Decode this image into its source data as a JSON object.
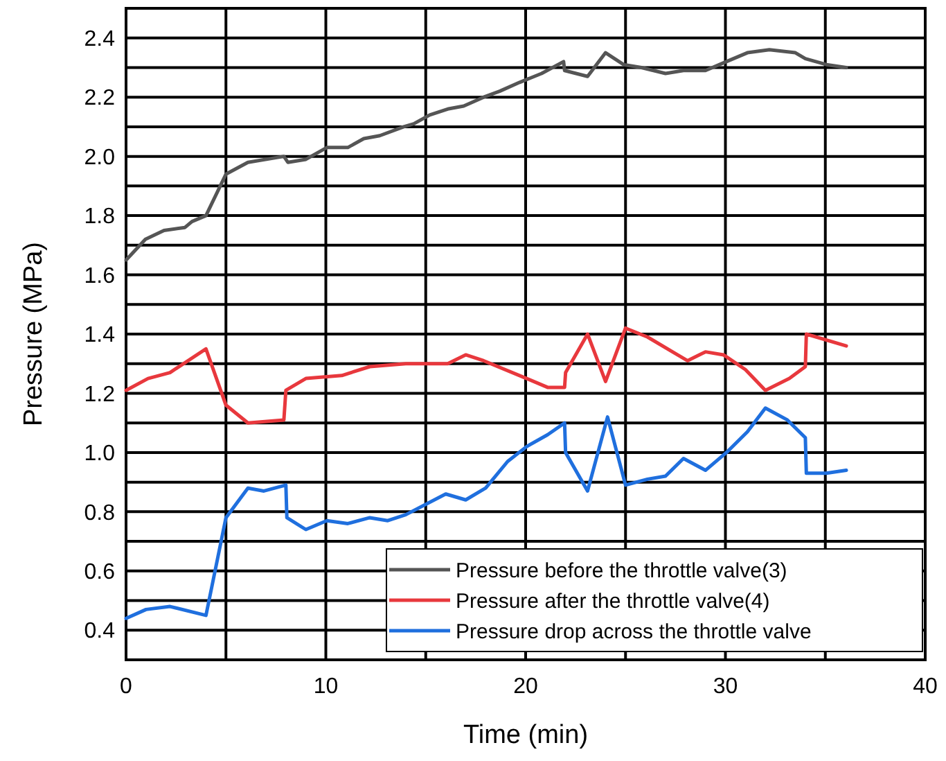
{
  "chart_data": {
    "type": "line",
    "xlabel": "Time (min)",
    "ylabel": "Pressure (MPa)",
    "xlim": [
      0,
      40
    ],
    "ylim": [
      0.3,
      2.5
    ],
    "xticks": [
      0,
      {
        "value": 5,
        "label": null
      },
      10,
      {
        "value": 15,
        "label": null
      },
      20,
      {
        "value": 25,
        "label": null
      },
      30,
      {
        "value": 35,
        "label": null
      },
      40
    ],
    "yticks": [
      {
        "value": 0.3,
        "label": null
      },
      0.4,
      {
        "value": 0.5,
        "label": null
      },
      0.6,
      {
        "value": 0.7,
        "label": null
      },
      0.8,
      {
        "value": 0.9,
        "label": null
      },
      {
        "value": 1,
        "label": "1.0"
      },
      {
        "value": 1.1,
        "label": null
      },
      1.2,
      {
        "value": 1.3,
        "label": null
      },
      1.4,
      {
        "value": 1.5,
        "label": null
      },
      1.6,
      {
        "value": 1.7,
        "label": null
      },
      1.8,
      {
        "value": 1.9,
        "label": null
      },
      {
        "value": 2,
        "label": "2.0"
      },
      {
        "value": 2.1,
        "label": null
      },
      2.2,
      {
        "value": 2.3,
        "label": null
      },
      2.4,
      {
        "value": 2.5,
        "label": null
      }
    ],
    "grid": true,
    "legend": "bottom right",
    "line_style": "solid",
    "series": [
      {
        "name": "Pressure before the throttle valve(3)",
        "color": "#555555",
        "x": [
          0,
          0.97,
          1.9,
          2.95,
          3.3,
          4.0,
          5.0,
          6.1,
          7.9,
          8.1,
          9.0,
          10.05,
          11.1,
          11.9,
          12.7,
          13.9,
          14.4,
          15.2,
          16.1,
          16.9,
          17.9,
          18.7,
          19.7,
          20.8,
          21.9,
          21.95,
          23.1,
          24.0,
          24.9,
          25.8,
          27.0,
          27.9,
          29.0,
          30.05,
          31.1,
          32.2,
          33.5,
          34.0,
          35.05,
          36.05
        ],
        "values": [
          1.65,
          1.72,
          1.75,
          1.76,
          1.78,
          1.8,
          1.94,
          1.98,
          2.0,
          1.98,
          1.99,
          2.03,
          2.03,
          2.06,
          2.07,
          2.1,
          2.11,
          2.14,
          2.16,
          2.17,
          2.2,
          2.22,
          2.25,
          2.28,
          2.32,
          2.29,
          2.27,
          2.35,
          2.31,
          2.3,
          2.28,
          2.29,
          2.29,
          2.32,
          2.35,
          2.36,
          2.35,
          2.33,
          2.31,
          2.3
        ]
      },
      {
        "name": "Pressure after the throttle valve(4)",
        "color": "#e8383d",
        "x": [
          0,
          1.1,
          2.2,
          4.0,
          5.0,
          6.1,
          7.9,
          8.0,
          9.0,
          10.8,
          12.2,
          14.0,
          16.1,
          17.0,
          17.9,
          20.05,
          21.1,
          21.95,
          22.0,
          23.1,
          24.0,
          25.0,
          26.1,
          28.1,
          29.0,
          29.9,
          31.0,
          32.0,
          33.2,
          34.0,
          34.05,
          36.05
        ],
        "values": [
          1.21,
          1.25,
          1.27,
          1.35,
          1.16,
          1.1,
          1.11,
          1.21,
          1.25,
          1.26,
          1.29,
          1.3,
          1.3,
          1.33,
          1.31,
          1.25,
          1.22,
          1.22,
          1.27,
          1.4,
          1.24,
          1.42,
          1.39,
          1.31,
          1.34,
          1.33,
          1.28,
          1.21,
          1.25,
          1.29,
          1.4,
          1.36
        ]
      },
      {
        "name": "Pressure drop across the throttle valve",
        "color": "#1f6fde",
        "x": [
          0,
          1.0,
          2.2,
          4.0,
          5.0,
          6.1,
          6.9,
          8.0,
          8.05,
          9.0,
          10.05,
          11.1,
          12.2,
          13.1,
          14.0,
          16.0,
          17.0,
          18.0,
          19.1,
          20.05,
          21.1,
          21.95,
          22.0,
          23.1,
          24.1,
          25.0,
          26.1,
          27.0,
          27.9,
          29.0,
          30.05,
          31.1,
          32.0,
          33.1,
          34.0,
          34.05,
          35.05,
          36.05
        ],
        "values": [
          0.44,
          0.47,
          0.48,
          0.45,
          0.78,
          0.88,
          0.87,
          0.89,
          0.78,
          0.74,
          0.77,
          0.76,
          0.78,
          0.77,
          0.79,
          0.86,
          0.84,
          0.88,
          0.97,
          1.02,
          1.06,
          1.1,
          1.0,
          0.87,
          1.12,
          0.89,
          0.91,
          0.92,
          0.98,
          0.94,
          1.0,
          1.07,
          1.15,
          1.11,
          1.05,
          0.93,
          0.93,
          0.94
        ]
      }
    ]
  }
}
